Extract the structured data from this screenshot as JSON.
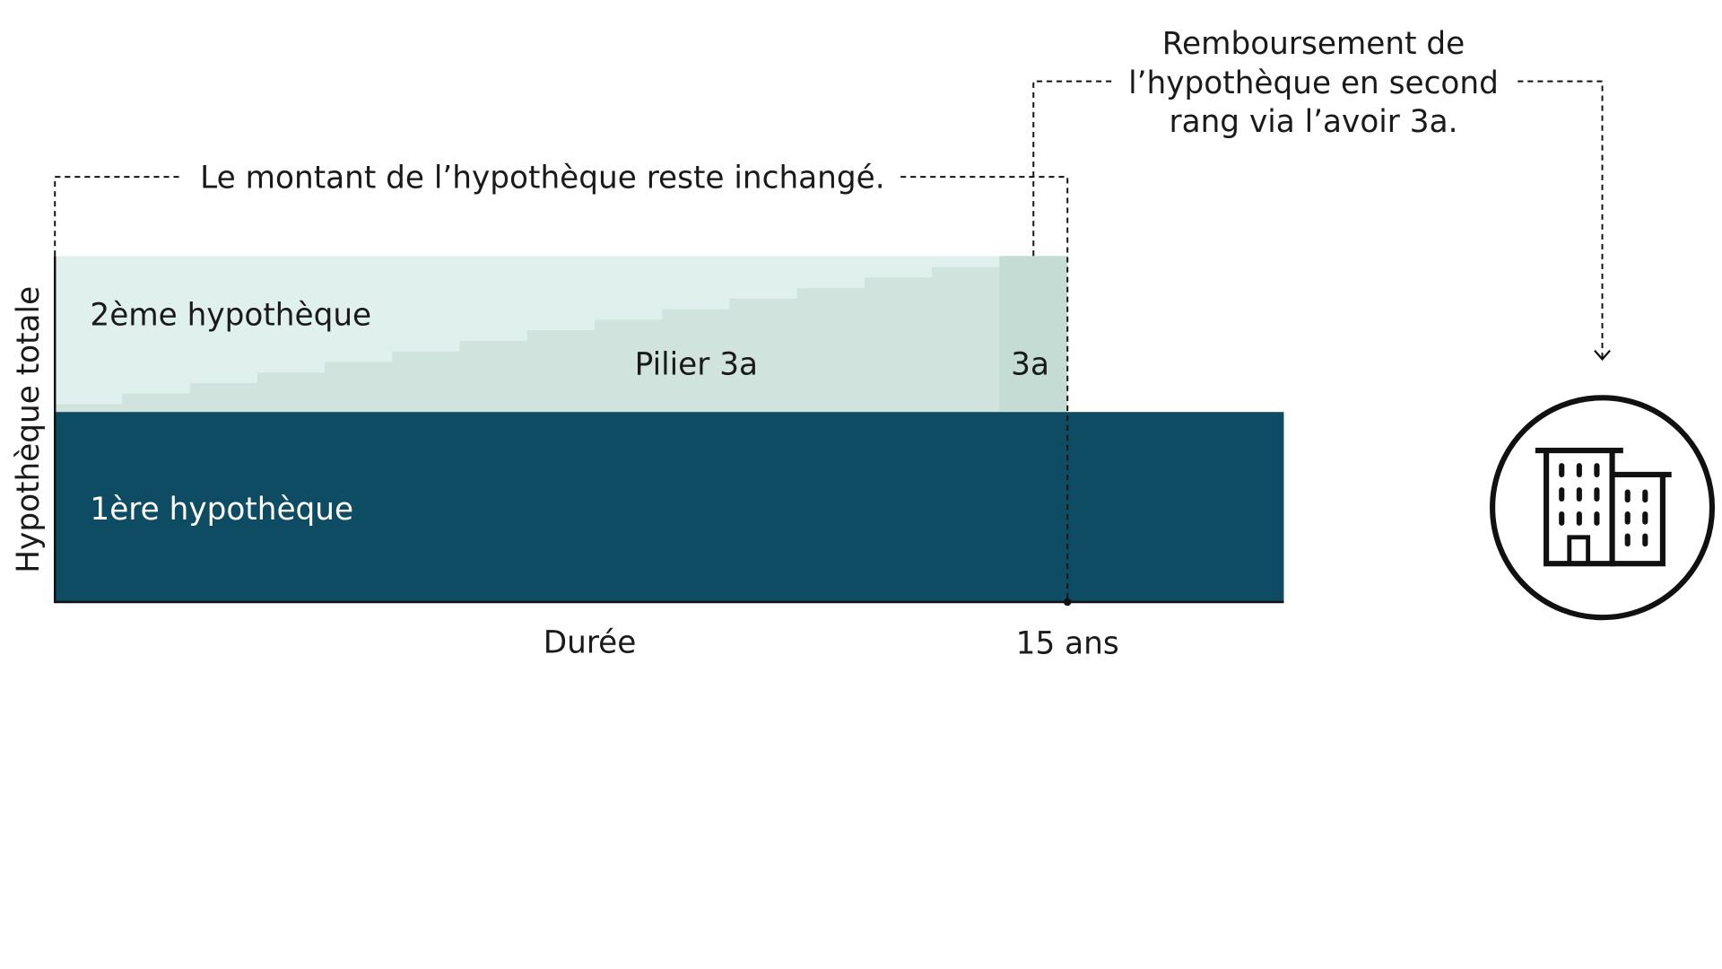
{
  "colors": {
    "first_mortgage": "#0e4c64",
    "second_mortgage": "#e0f1ed",
    "pillar_3a": "#d0e3dd",
    "pillar_3a_final": "#c4dcd4",
    "axis": "#111111",
    "text_dark": "#1a1a1a",
    "text_light": "#ffffff"
  },
  "labels": {
    "unchanged": "Le montant de l’hypothèque reste inchangé.",
    "repayment_line1": "Remboursement de",
    "repayment_line2": "l’hypothèque en second",
    "repayment_line3": "rang via l’avoir 3a.",
    "second_mortgage": "2ème hypothèque",
    "pillar_3a": "Pilier 3a",
    "pillar_3a_short": "3a",
    "first_mortgage": "1ère hypothèque",
    "y_axis": "Hypothèque totale",
    "x_axis": "Durée",
    "x_tick": "15 ans"
  },
  "icons": {
    "building": "building-icon",
    "arrow": "arrow-down-icon"
  },
  "pillar_steps": 14,
  "pillar_fill_fraction_at_end": 1.0
}
